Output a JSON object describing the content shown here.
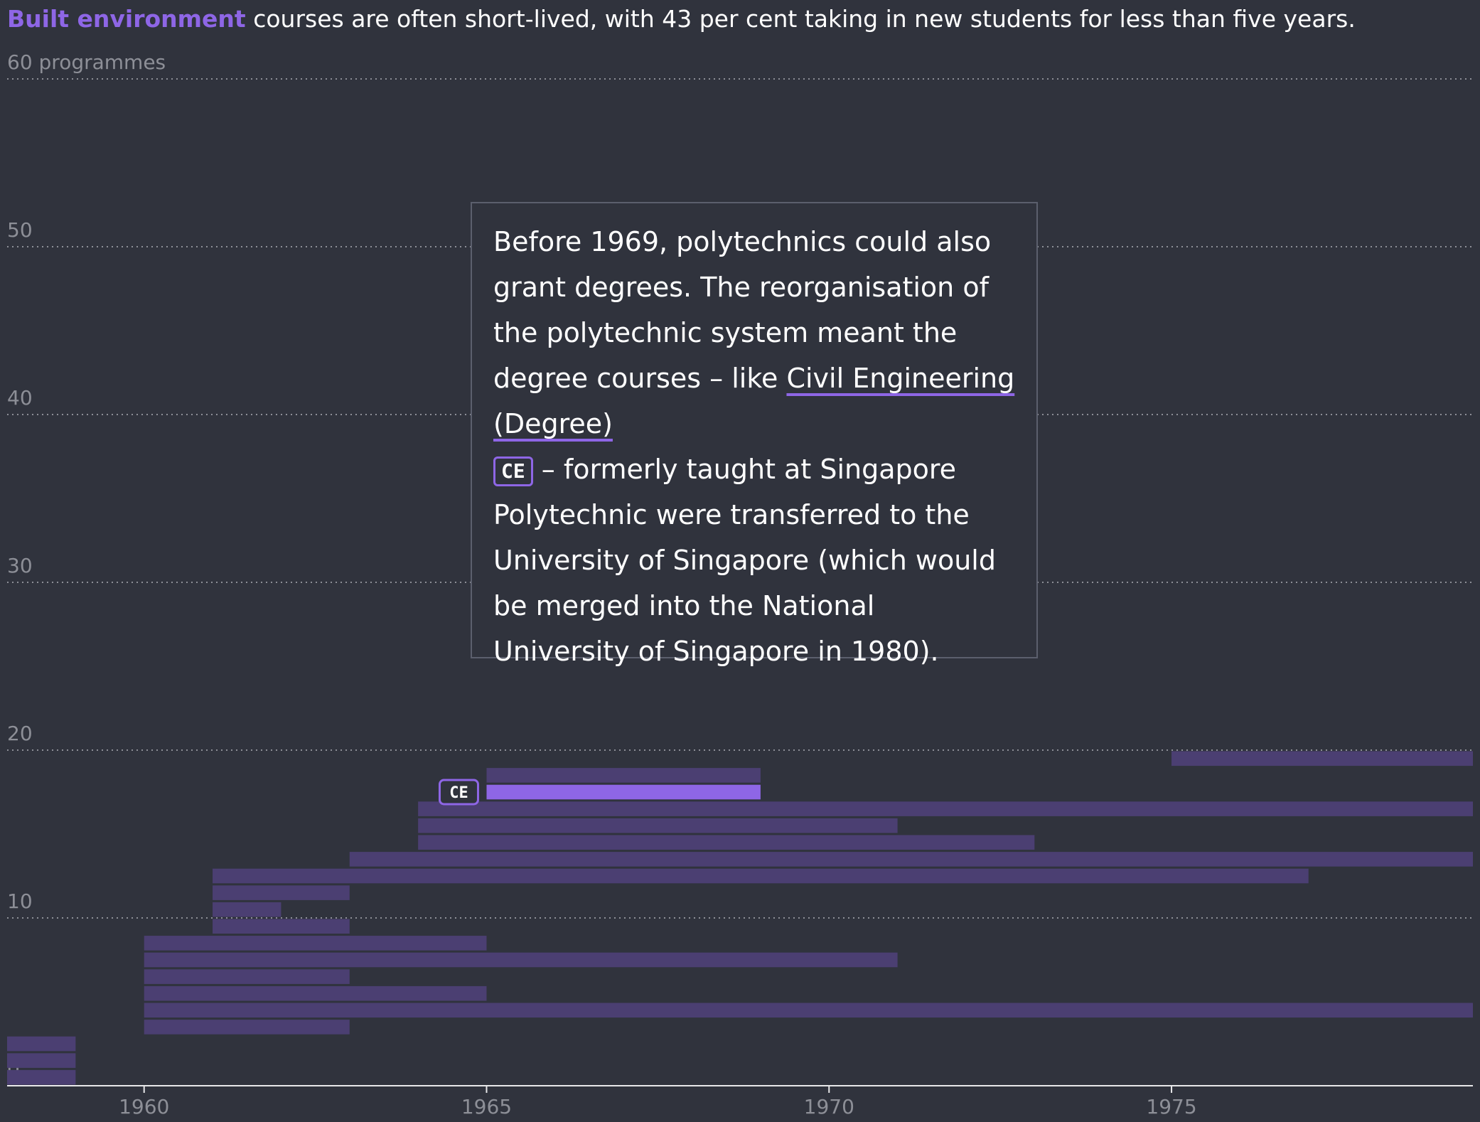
{
  "headline": {
    "highlight": "Built environment",
    "rest": " courses are often short-lived, with 43 per cent taking in new students for less than five years."
  },
  "tooltip": {
    "part1": "Before 1969, polytechnics could also grant degrees. The reorganisation of the polytechnic system meant the degree courses – like ",
    "course_name": "Civil Engineering (Degree)",
    "badge": "CE",
    "part2": " – formerly taught at Singapore Polytechnic were transferred to the University of Singapore (which would be merged into the National University of Singapore in 1980)."
  },
  "colors": {
    "background": "#30333d",
    "bar": "#4b3f72",
    "highlight": "#8e66e6",
    "axis_text": "#8d8f97",
    "grid": "#8d8f97"
  },
  "chart_data": {
    "type": "bar",
    "orientation": "horizontal-timeline",
    "title": "Built environment courses are often short-lived, with 43 per cent taking in new students for less than five years.",
    "ylabel": "programmes",
    "y_unit_label": "60 programmes",
    "ylim": [
      0,
      60
    ],
    "yticks": [
      0,
      10,
      20,
      30,
      40,
      50,
      60
    ],
    "xlim": [
      1958,
      1979.4
    ],
    "xticks": [
      1960,
      1965,
      1970,
      1975
    ],
    "highlight_label": "CE",
    "programmes": [
      {
        "level": 0,
        "start": 1958,
        "end": 1959
      },
      {
        "level": 1,
        "start": 1958,
        "end": 1959
      },
      {
        "level": 2,
        "start": 1958,
        "end": 1959
      },
      {
        "level": 3,
        "start": 1960,
        "end": 1963
      },
      {
        "level": 4,
        "start": 1960,
        "end": 1979.4
      },
      {
        "level": 5,
        "start": 1960,
        "end": 1965
      },
      {
        "level": 6,
        "start": 1960,
        "end": 1963
      },
      {
        "level": 7,
        "start": 1960,
        "end": 1971
      },
      {
        "level": 8,
        "start": 1960,
        "end": 1965
      },
      {
        "level": 9,
        "start": 1961,
        "end": 1963
      },
      {
        "level": 10,
        "start": 1961,
        "end": 1962
      },
      {
        "level": 11,
        "start": 1961,
        "end": 1963
      },
      {
        "level": 12,
        "start": 1961,
        "end": 1977
      },
      {
        "level": 13,
        "start": 1963,
        "end": 1979.4
      },
      {
        "level": 14,
        "start": 1964,
        "end": 1973
      },
      {
        "level": 15,
        "start": 1964,
        "end": 1971
      },
      {
        "level": 16,
        "start": 1964,
        "end": 1979.4
      },
      {
        "level": 17,
        "start": 1965,
        "end": 1969,
        "highlight": true,
        "label": "CE"
      },
      {
        "level": 18,
        "start": 1965,
        "end": 1969
      },
      {
        "level": 19,
        "start": 1975,
        "end": 1979.4
      }
    ]
  }
}
